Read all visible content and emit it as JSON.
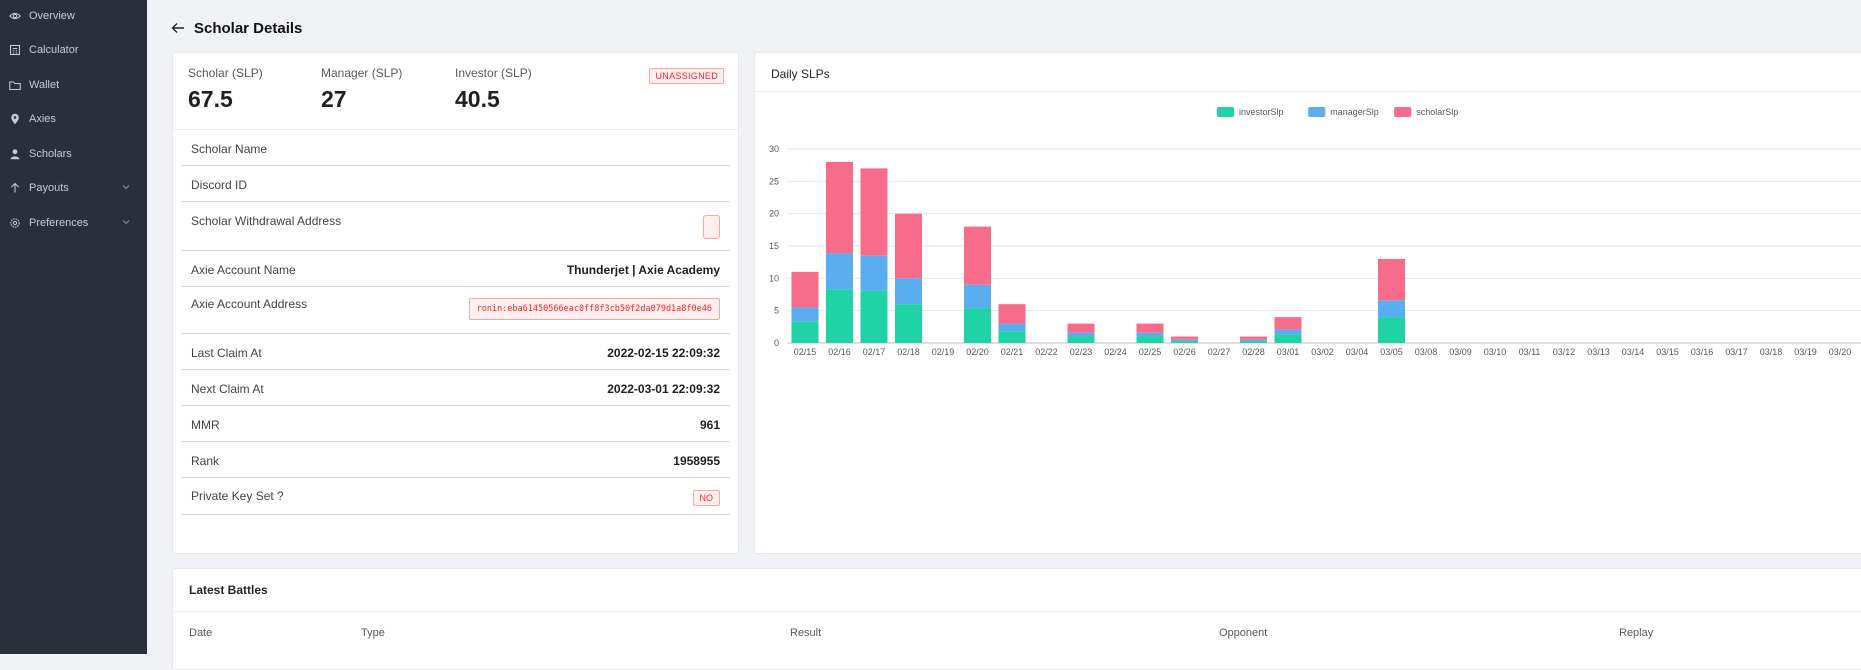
{
  "sidebar": {
    "items": [
      {
        "label": "Overview",
        "icon": "eye-icon"
      },
      {
        "label": "Calculator",
        "icon": "calculator-icon"
      },
      {
        "label": "Wallet",
        "icon": "folder-icon"
      },
      {
        "label": "Axies",
        "icon": "map-pin-icon"
      },
      {
        "label": "Scholars",
        "icon": "user-icon"
      },
      {
        "label": "Payouts",
        "icon": "arrow-up-icon"
      },
      {
        "label": "Preferences",
        "icon": "gear-icon"
      }
    ]
  },
  "header": {
    "title": "Scholar Details"
  },
  "stats": {
    "scholar_label": "Scholar (SLP)",
    "scholar_value": "67.5",
    "manager_label": "Manager (SLP)",
    "manager_value": "27",
    "investor_label": "Investor (SLP)",
    "investor_value": "40.5",
    "status_badge": "UNASSIGNED"
  },
  "details": {
    "scholar_name_label": "Scholar Name",
    "discord_id_label": "Discord ID",
    "withdrawal_label": "Scholar Withdrawal Address",
    "axie_name_label": "Axie Account Name",
    "axie_name_value": "Thunderjet | Axie Academy",
    "axie_address_label": "Axie Account Address",
    "axie_address_value": "ronin:eba61450566eac0ff8f3cb50f2da079d1a8f0e46",
    "last_claim_label": "Last Claim At",
    "last_claim_value": "2022-02-15 22:09:32",
    "next_claim_label": "Next Claim At",
    "next_claim_value": "2022-03-01 22:09:32",
    "mmr_label": "MMR",
    "mmr_value": "961",
    "rank_label": "Rank",
    "rank_value": "1958955",
    "private_key_label": "Private Key Set ?",
    "private_key_value": "NO"
  },
  "chart_title": "Daily SLPs",
  "chart_data": {
    "type": "bar",
    "stacked": true,
    "categories": [
      "02/15",
      "02/16",
      "02/17",
      "02/18",
      "02/19",
      "02/20",
      "02/21",
      "02/22",
      "02/23",
      "02/24",
      "02/25",
      "02/26",
      "02/27",
      "02/28",
      "03/01",
      "03/02",
      "03/04",
      "03/05",
      "03/08",
      "03/09",
      "03/10",
      "03/11",
      "03/12",
      "03/13",
      "03/14",
      "03/15",
      "03/16",
      "03/17",
      "03/18",
      "03/19",
      "03/20"
    ],
    "series": [
      {
        "name": "investorSlp",
        "color": "#1fd3a6",
        "values": [
          3.3,
          8.3,
          8.1,
          6.0,
          0,
          5.4,
          1.8,
          0,
          1.0,
          0,
          1.0,
          0.3,
          0,
          0.3,
          1.3,
          0,
          0,
          4.0,
          0,
          0,
          0,
          0,
          0,
          0,
          0,
          0,
          0,
          0,
          0,
          0,
          0
        ]
      },
      {
        "name": "managerSlp",
        "color": "#5aaef0",
        "values": [
          2.2,
          5.6,
          5.4,
          4.0,
          0,
          3.6,
          1.2,
          0,
          0.6,
          0,
          0.6,
          0.2,
          0,
          0.2,
          0.8,
          0,
          0,
          2.6,
          0,
          0,
          0,
          0,
          0,
          0,
          0,
          0,
          0,
          0,
          0,
          0,
          0
        ]
      },
      {
        "name": "scholarSlp",
        "color": "#f76c8a",
        "values": [
          5.5,
          14.1,
          13.5,
          10.0,
          0,
          9.0,
          3.0,
          0,
          1.4,
          0,
          1.4,
          0.5,
          0,
          0.5,
          1.9,
          0,
          0,
          6.4,
          0,
          0,
          0,
          0,
          0,
          0,
          0,
          0,
          0,
          0,
          0,
          0,
          0
        ]
      }
    ],
    "yticks": [
      0,
      5,
      10,
      15,
      20,
      25,
      30
    ],
    "ylim": [
      0,
      30
    ],
    "legend_position": "top-center",
    "grid": true
  },
  "battles": {
    "title": "Latest Battles",
    "columns": [
      "Date",
      "Type",
      "Result",
      "Opponent",
      "Replay"
    ]
  }
}
